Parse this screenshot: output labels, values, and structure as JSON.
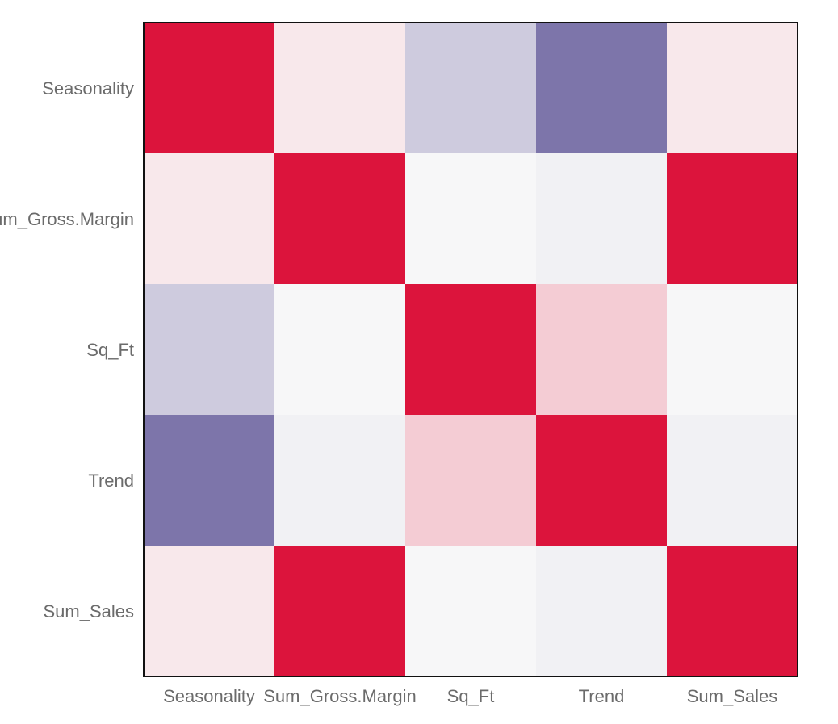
{
  "chart_data": {
    "type": "heatmap",
    "x_labels": [
      "Seasonality",
      "Sum_Gross.Margin",
      "Sq_Ft",
      "Trend",
      "Sum_Sales"
    ],
    "y_labels": [
      "Seasonality",
      "Sum_Gross.Margin",
      "Sq_Ft",
      "Trend",
      "Sum_Sales"
    ],
    "values": [
      [
        1.0,
        0.08,
        -0.3,
        -0.85,
        0.08
      ],
      [
        0.08,
        1.0,
        -0.02,
        -0.06,
        1.0
      ],
      [
        -0.3,
        -0.02,
        1.0,
        0.2,
        -0.02
      ],
      [
        -0.85,
        -0.06,
        0.2,
        1.0,
        -0.06
      ],
      [
        0.08,
        1.0,
        -0.02,
        -0.06,
        1.0
      ]
    ],
    "value_range": [
      -1,
      1
    ],
    "colors": {
      "positive": "#dc143c",
      "negative": "#675d9c",
      "neutral": "#fafafa"
    },
    "grid": false,
    "legend": "none"
  }
}
